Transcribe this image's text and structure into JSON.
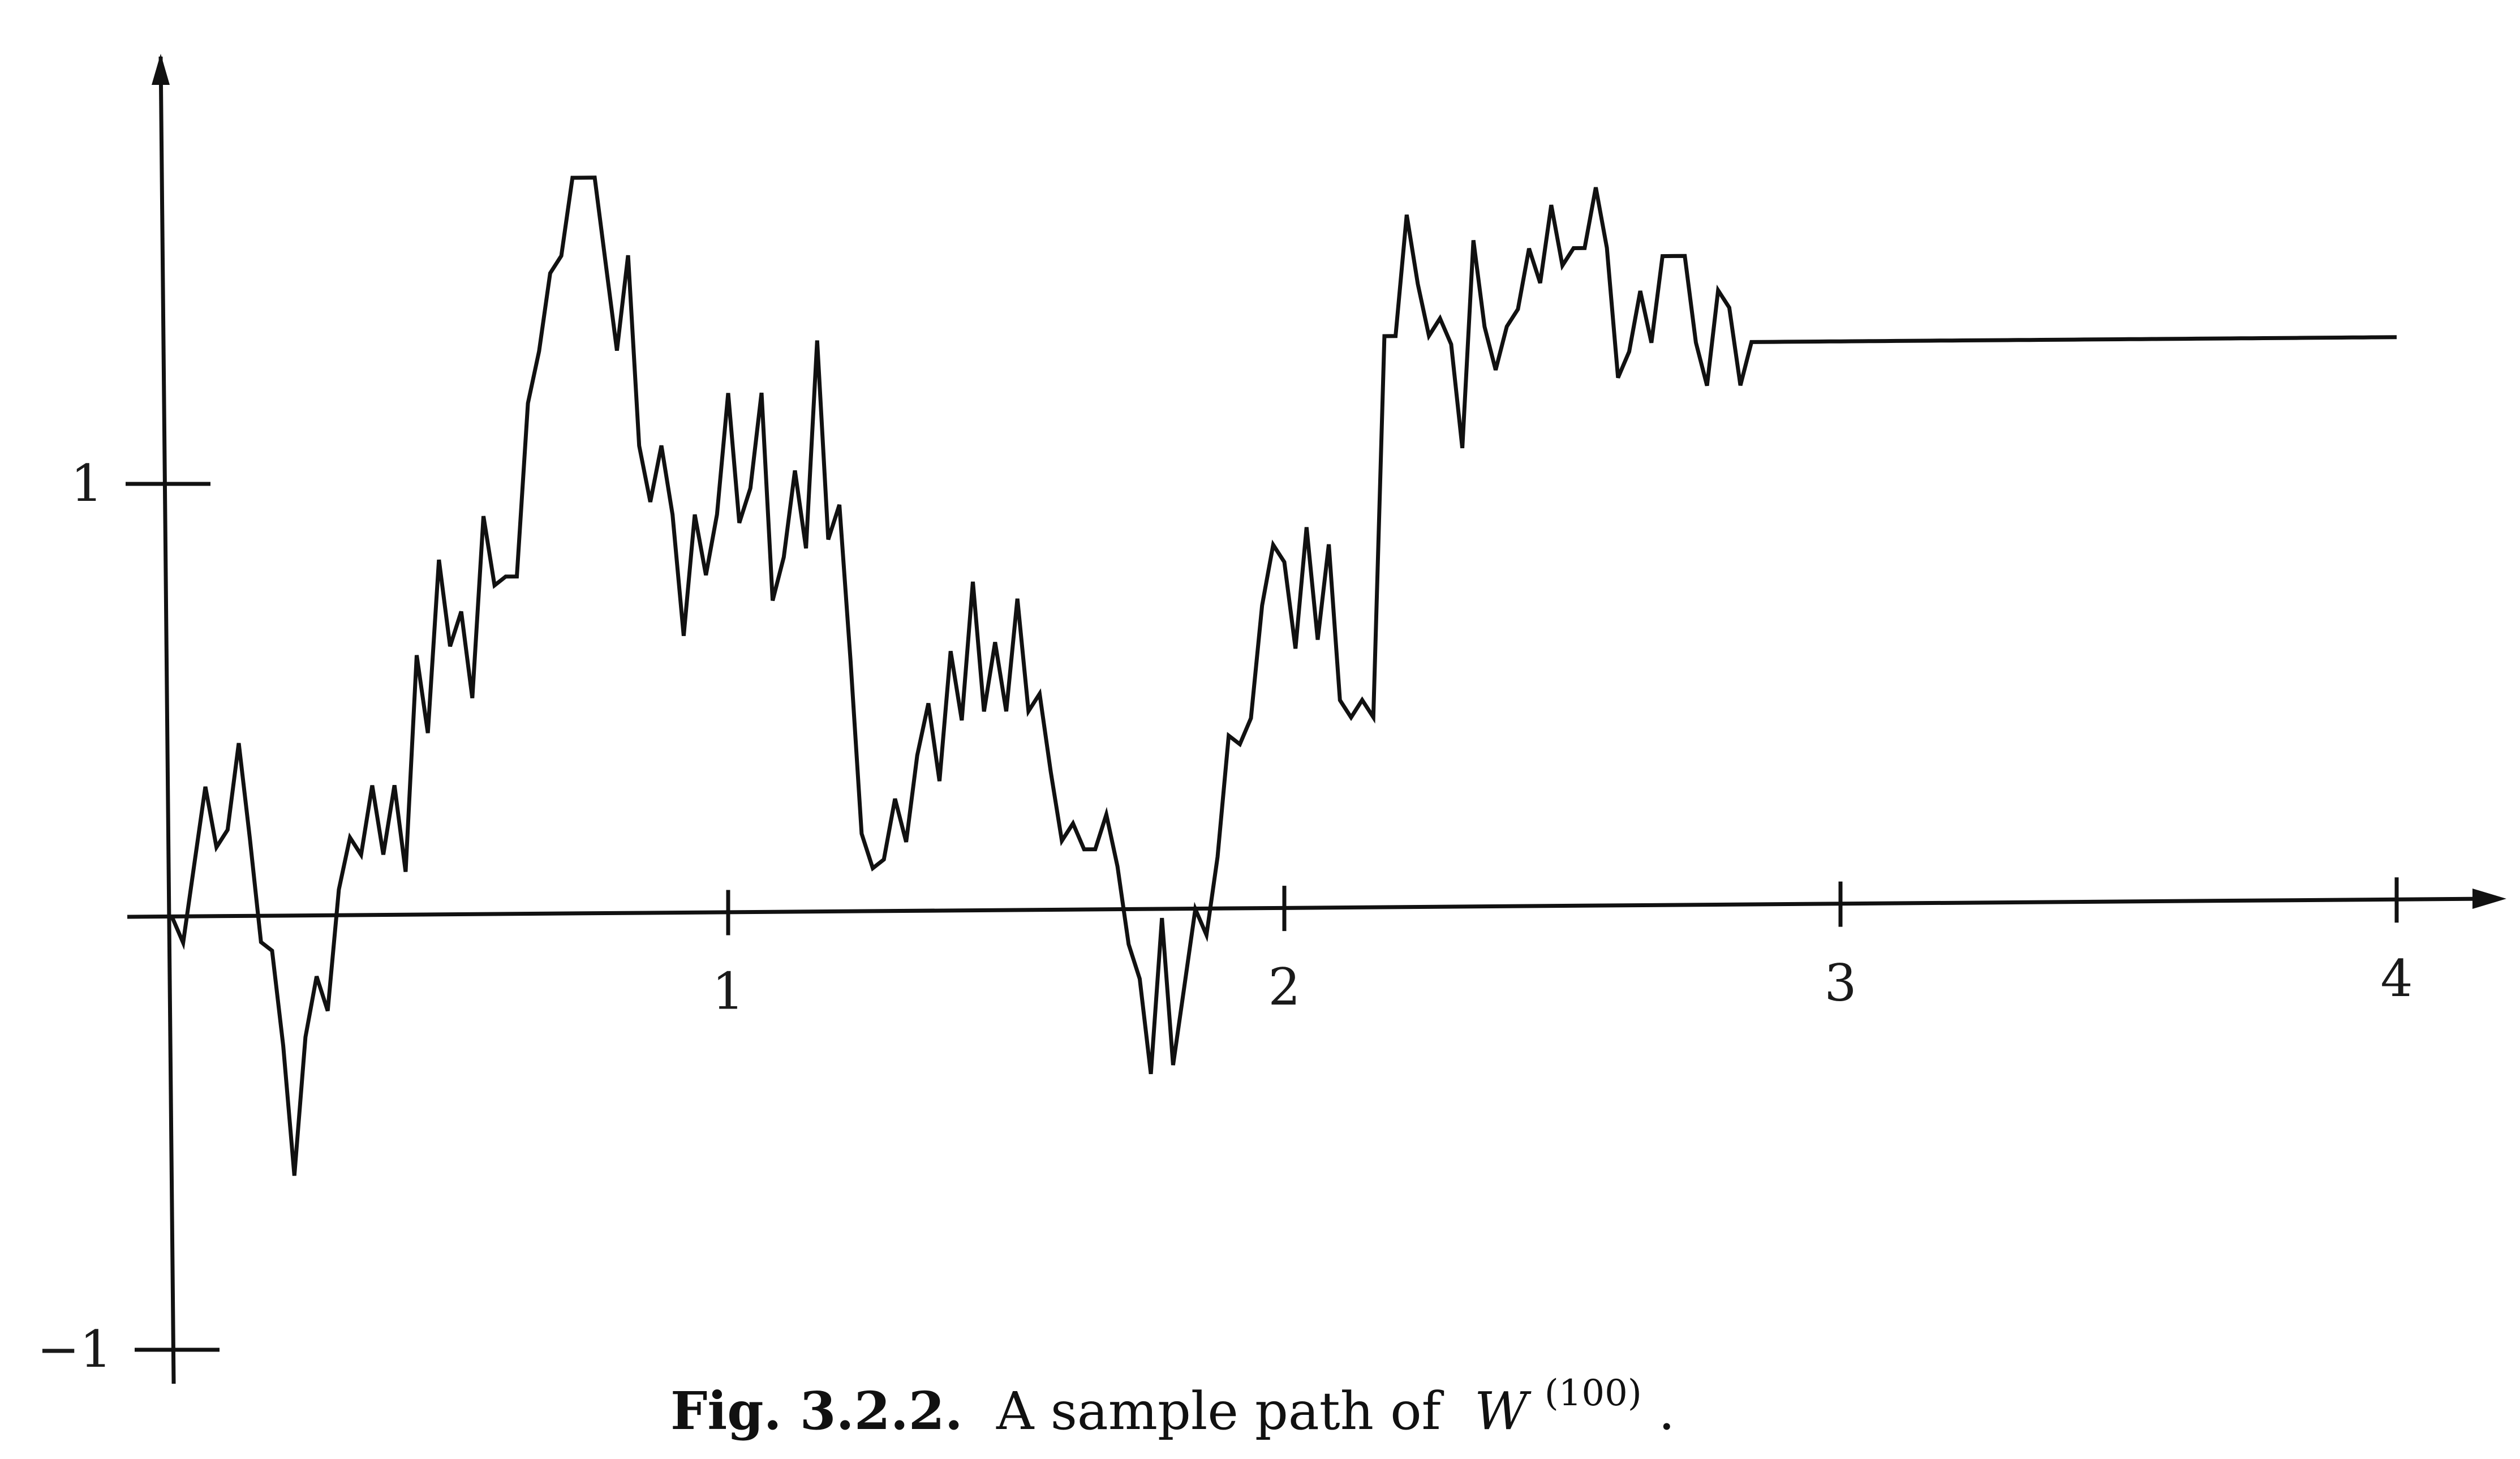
{
  "chart_data": {
    "type": "line",
    "title": "",
    "xlabel": "",
    "ylabel": "",
    "xlim": [
      0,
      4.2
    ],
    "ylim": [
      -1.05,
      2.0
    ],
    "x_ticks": [
      {
        "value": 1,
        "label": "1"
      },
      {
        "value": 2,
        "label": "2"
      },
      {
        "value": 3,
        "label": "3"
      },
      {
        "value": 4,
        "label": "4"
      }
    ],
    "y_ticks": [
      {
        "value": 1,
        "label": "1"
      },
      {
        "value": -1,
        "label": "−1"
      }
    ],
    "grid": false,
    "series": [
      {
        "x": [
          0,
          0.02,
          0.04,
          0.06,
          0.08,
          0.1,
          0.12,
          0.14,
          0.16,
          0.18,
          0.2,
          0.22,
          0.24,
          0.26,
          0.28,
          0.3,
          0.32,
          0.34,
          0.36,
          0.38,
          0.4,
          0.42,
          0.44,
          0.46,
          0.48,
          0.5,
          0.52,
          0.54,
          0.56,
          0.58,
          0.6,
          0.62,
          0.64,
          0.66,
          0.68,
          0.7,
          0.72,
          0.74,
          0.76,
          0.78,
          0.8,
          0.82,
          0.84,
          0.86,
          0.88,
          0.9,
          0.92,
          0.94,
          0.96,
          0.98,
          1.0,
          1.02,
          1.04,
          1.06,
          1.08,
          1.1,
          1.12,
          1.14,
          1.16,
          1.18,
          1.2,
          1.22,
          1.24,
          1.26,
          1.28,
          1.3,
          1.32,
          1.34,
          1.36,
          1.38,
          1.4,
          1.42,
          1.44,
          1.46,
          1.48,
          1.5,
          1.52,
          1.54,
          1.56,
          1.58,
          1.6,
          1.62,
          1.64,
          1.66,
          1.68,
          1.7,
          1.72,
          1.74,
          1.76,
          1.78,
          1.8,
          1.82,
          1.84,
          1.86,
          1.88,
          1.9,
          1.92,
          1.94,
          1.96,
          1.98,
          2.0,
          2.02,
          2.04,
          2.06,
          2.08,
          2.1,
          2.12,
          2.14,
          2.16,
          2.18,
          2.2,
          2.22,
          2.24,
          2.26,
          2.28,
          2.3,
          2.32,
          2.34,
          2.36,
          2.38,
          2.4,
          2.42,
          2.44,
          2.46,
          2.48,
          2.5,
          2.52,
          2.54,
          2.56,
          2.58,
          2.6,
          2.62,
          2.64,
          2.66,
          2.68,
          2.7,
          2.72,
          2.74,
          2.76,
          2.78,
          2.8,
          2.82,
          2.84,
          2.86,
          2.88,
          2.9,
          2.92,
          2.94,
          2.96,
          2.98,
          3.0,
          3.02,
          3.04,
          3.06,
          3.08,
          3.1,
          3.12,
          3.14,
          3.16,
          3.18,
          3.2,
          3.22,
          3.24,
          3.26,
          3.28,
          3.3,
          3.32,
          3.34,
          3.36,
          3.38,
          3.4,
          3.42,
          3.44,
          3.46,
          3.48,
          3.5,
          3.52,
          3.54,
          3.56,
          3.58,
          3.6,
          3.62,
          3.64,
          3.66,
          3.68,
          3.7,
          3.72,
          3.74,
          3.76,
          3.78,
          3.8,
          3.82,
          3.84,
          3.86,
          3.88,
          3.9,
          3.92,
          3.94,
          3.96,
          3.98,
          4.0
        ],
        "values": [
          0,
          -0.06,
          0.12,
          0.3,
          0.16,
          0.2,
          0.4,
          0.18,
          -0.06,
          -0.08,
          -0.3,
          -0.6,
          -0.28,
          -0.14,
          -0.22,
          0.06,
          0.18,
          0.14,
          0.3,
          0.14,
          0.3,
          0.1,
          0.6,
          0.42,
          0.82,
          0.62,
          0.7,
          0.5,
          0.92,
          0.76,
          0.78,
          0.78,
          1.18,
          1.3,
          1.48,
          1.52,
          1.7,
          1.7,
          1.7,
          1.5,
          1.3,
          1.52,
          1.08,
          0.95,
          1.08,
          0.92,
          0.64,
          0.92,
          0.78,
          0.92,
          1.2,
          0.9,
          0.98,
          1.2,
          0.72,
          0.82,
          1.02,
          0.84,
          1.32,
          0.86,
          0.94,
          0.58,
          0.18,
          0.1,
          0.12,
          0.26,
          0.16,
          0.36,
          0.48,
          0.3,
          0.6,
          0.44,
          0.76,
          0.46,
          0.62,
          0.46,
          0.72,
          0.46,
          0.5,
          0.32,
          0.16,
          0.2,
          0.14,
          0.14,
          0.22,
          0.1,
          -0.08,
          -0.16,
          -0.38,
          -0.02,
          -0.36,
          -0.18,
          0.0,
          -0.06,
          0.12,
          0.4,
          0.38,
          0.44,
          0.7,
          0.84,
          0.8,
          0.6,
          0.88,
          0.62,
          0.84,
          0.48,
          0.44,
          0.48,
          0.44,
          1.32,
          1.32,
          1.6,
          1.44,
          1.32,
          1.36,
          1.3,
          1.06,
          1.54,
          1.34,
          1.24,
          1.34,
          1.38,
          1.52,
          1.44,
          1.62,
          1.48,
          1.52,
          1.52,
          1.66,
          1.52,
          1.22,
          1.28,
          1.42,
          1.3,
          1.5,
          1.5,
          1.5,
          1.3,
          1.2,
          1.42,
          1.38,
          1.2,
          1.3,
          1.3,
          1.3,
          1.3,
          1.3,
          1.3,
          1.3,
          1.3,
          1.3,
          1.3,
          1.3,
          1.3,
          1.3,
          1.3,
          1.3,
          1.3,
          1.3,
          1.3,
          1.3,
          1.3,
          1.3,
          1.3,
          1.3,
          1.3,
          1.3,
          1.3,
          1.3,
          1.3,
          1.3,
          1.3,
          1.3,
          1.3,
          1.3,
          1.3,
          1.3,
          1.3,
          1.3,
          1.3,
          1.3,
          1.3,
          1.3,
          1.3,
          1.3,
          1.3,
          1.3,
          1.3,
          1.3,
          1.3,
          1.3,
          1.3,
          1.3,
          1.3,
          1.3,
          1.3,
          1.3,
          1.3,
          1.3,
          1.3,
          1.3
        ]
      }
    ]
  },
  "caption": {
    "label": "Fig. 3.2.2.",
    "text": "A sample path of",
    "symbol": "W",
    "superscript": "(100)",
    "period": "."
  }
}
